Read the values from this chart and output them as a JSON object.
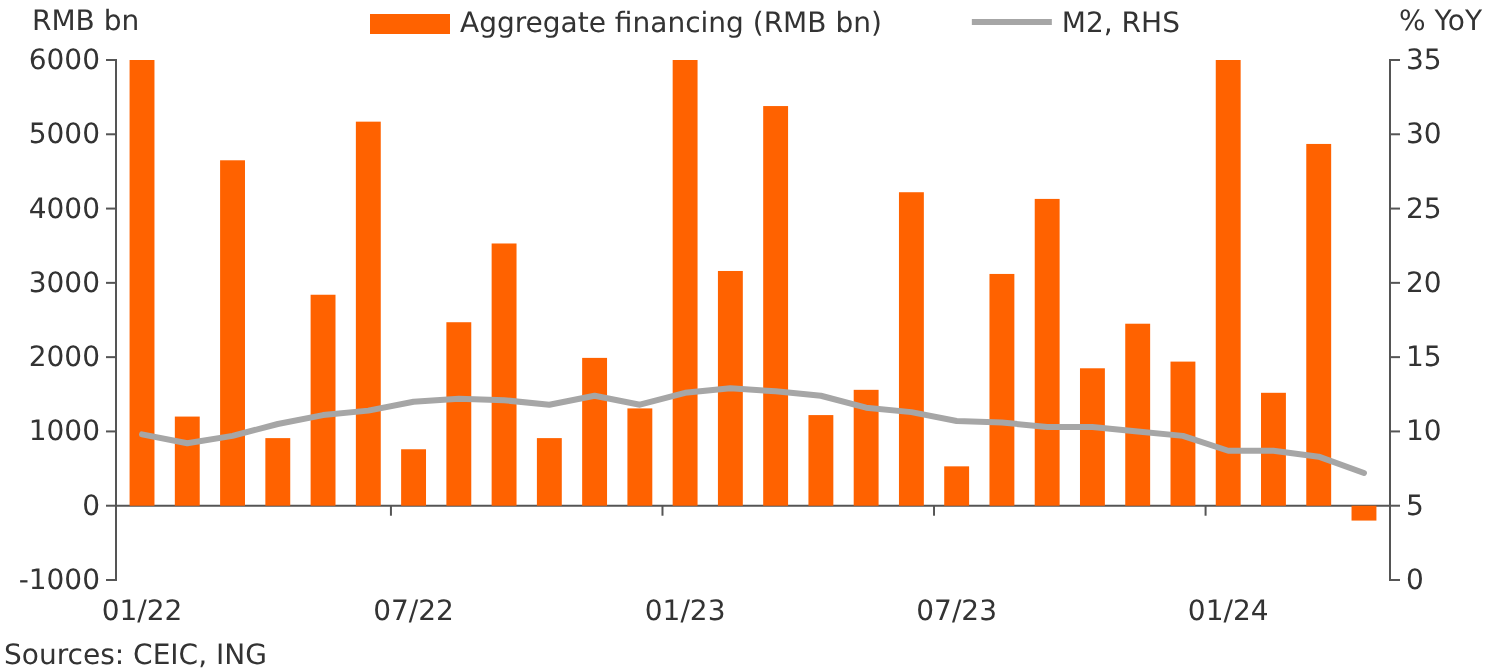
{
  "chart_data": {
    "type": "bar",
    "categories": [
      "01/22",
      null,
      null,
      null,
      null,
      null,
      "07/22",
      null,
      null,
      null,
      null,
      null,
      "01/23",
      null,
      null,
      null,
      null,
      null,
      "07/23",
      null,
      null,
      null,
      null,
      null,
      "01/24",
      null,
      null,
      null
    ],
    "ylabel": "RMB bn",
    "y2label": "% YoY",
    "series": [
      {
        "name": "Aggregate financing (RMB bn)",
        "color": "#ff6200",
        "values": [
          6000,
          1200,
          4650,
          910,
          2840,
          5170,
          760,
          2470,
          3530,
          910,
          1990,
          1310,
          6000,
          3160,
          5380,
          1220,
          1560,
          4220,
          530,
          3120,
          4130,
          1850,
          2450,
          1940,
          6000,
          1520,
          4870,
          -200
        ]
      },
      {
        "name": "M2, RHS",
        "type": "line",
        "axis": "y2",
        "color": "#a6a6a6",
        "values": [
          9.8,
          9.2,
          9.7,
          10.5,
          11.1,
          11.4,
          12.0,
          12.2,
          12.1,
          11.8,
          12.4,
          11.8,
          12.6,
          12.9,
          12.7,
          12.4,
          11.6,
          11.3,
          10.7,
          10.6,
          10.3,
          10.3,
          10.0,
          9.7,
          8.7,
          8.7,
          8.3,
          7.2
        ]
      }
    ],
    "ylim": [
      -1000,
      6000
    ],
    "yticks": [
      -1000,
      0,
      1000,
      2000,
      3000,
      4000,
      5000,
      6000
    ],
    "y2lim": [
      0,
      35
    ],
    "y2ticks": [
      0,
      5,
      10,
      15,
      20,
      25,
      30,
      35
    ],
    "legend": "top",
    "annotations": [
      "Sources: CEIC, ING"
    ]
  }
}
